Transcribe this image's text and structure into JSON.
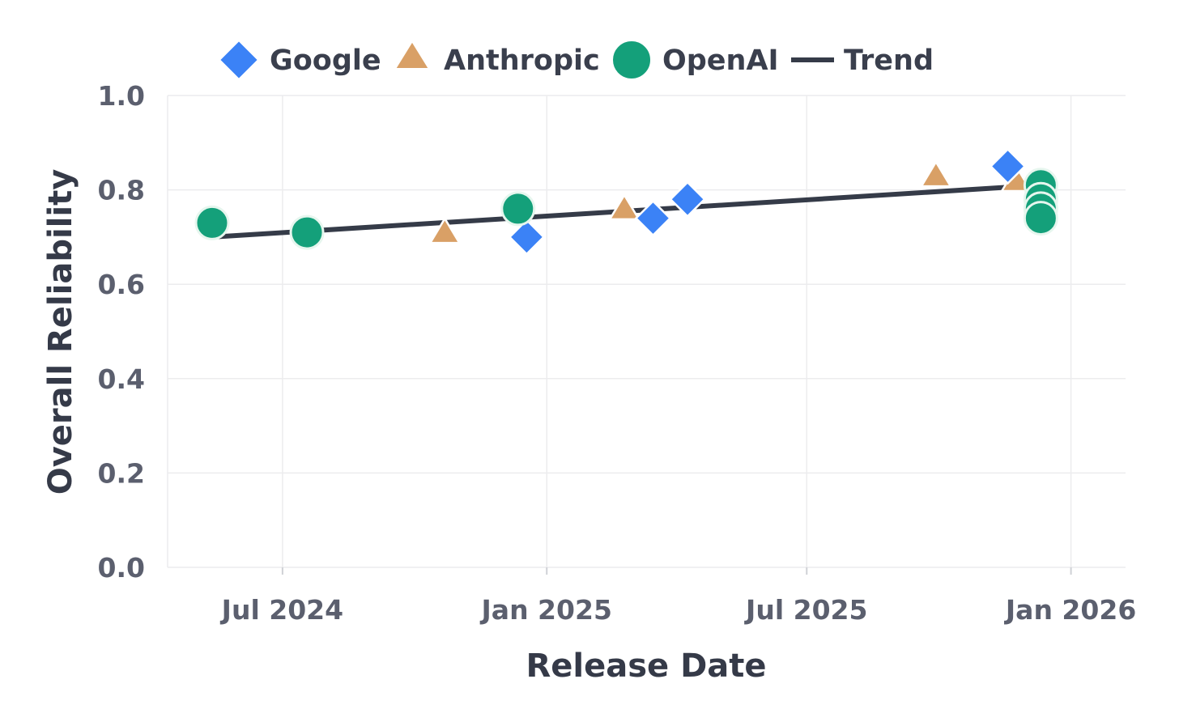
{
  "chart_data": {
    "type": "scatter",
    "xlabel": "Release Date",
    "ylabel": "Overall Reliability",
    "x_ticks": [
      {
        "date": "2024-07-01",
        "label": "Jul 2024"
      },
      {
        "date": "2025-01-01",
        "label": "Jan 2025"
      },
      {
        "date": "2025-07-01",
        "label": "Jul 2025"
      },
      {
        "date": "2026-01-01",
        "label": "Jan 2026"
      }
    ],
    "y_ticks": [
      {
        "value": 0.0,
        "label": "0.0"
      },
      {
        "value": 0.2,
        "label": "0.2"
      },
      {
        "value": 0.4,
        "label": "0.4"
      },
      {
        "value": 0.6,
        "label": "0.6"
      },
      {
        "value": 0.8,
        "label": "0.8"
      },
      {
        "value": 1.0,
        "label": "1.0"
      }
    ],
    "xlim": [
      "2024-04-12",
      "2026-02-08"
    ],
    "ylim": [
      0,
      1.0
    ],
    "grid": true,
    "legend_position": "top",
    "series": [
      {
        "name": "Google",
        "marker": "diamond",
        "color": "#3b82f6",
        "points": [
          {
            "x": "2024-12-18",
            "y": 0.7
          },
          {
            "x": "2025-03-16",
            "y": 0.74
          },
          {
            "x": "2025-04-09",
            "y": 0.78
          },
          {
            "x": "2025-11-18",
            "y": 0.85
          }
        ]
      },
      {
        "name": "Anthropic",
        "marker": "triangle",
        "color": "#d9a066",
        "points": [
          {
            "x": "2024-10-22",
            "y": 0.71
          },
          {
            "x": "2025-02-24",
            "y": 0.76
          },
          {
            "x": "2025-09-29",
            "y": 0.83
          },
          {
            "x": "2025-11-24",
            "y": 0.82
          }
        ]
      },
      {
        "name": "OpenAI",
        "marker": "circle",
        "color": "#14a07a",
        "points": [
          {
            "x": "2024-05-13",
            "y": 0.73
          },
          {
            "x": "2024-07-18",
            "y": 0.71
          },
          {
            "x": "2024-12-12",
            "y": 0.76
          },
          {
            "x": "2025-12-11",
            "y": 0.81
          },
          {
            "x": "2025-12-11",
            "y": 0.78
          },
          {
            "x": "2025-12-11",
            "y": 0.76
          },
          {
            "x": "2025-12-11",
            "y": 0.74
          }
        ]
      }
    ],
    "trend": {
      "name": "Trend",
      "color": "#353b48",
      "points": [
        {
          "x": "2024-05-13",
          "y": 0.7
        },
        {
          "x": "2025-12-11",
          "y": 0.81
        }
      ]
    }
  }
}
